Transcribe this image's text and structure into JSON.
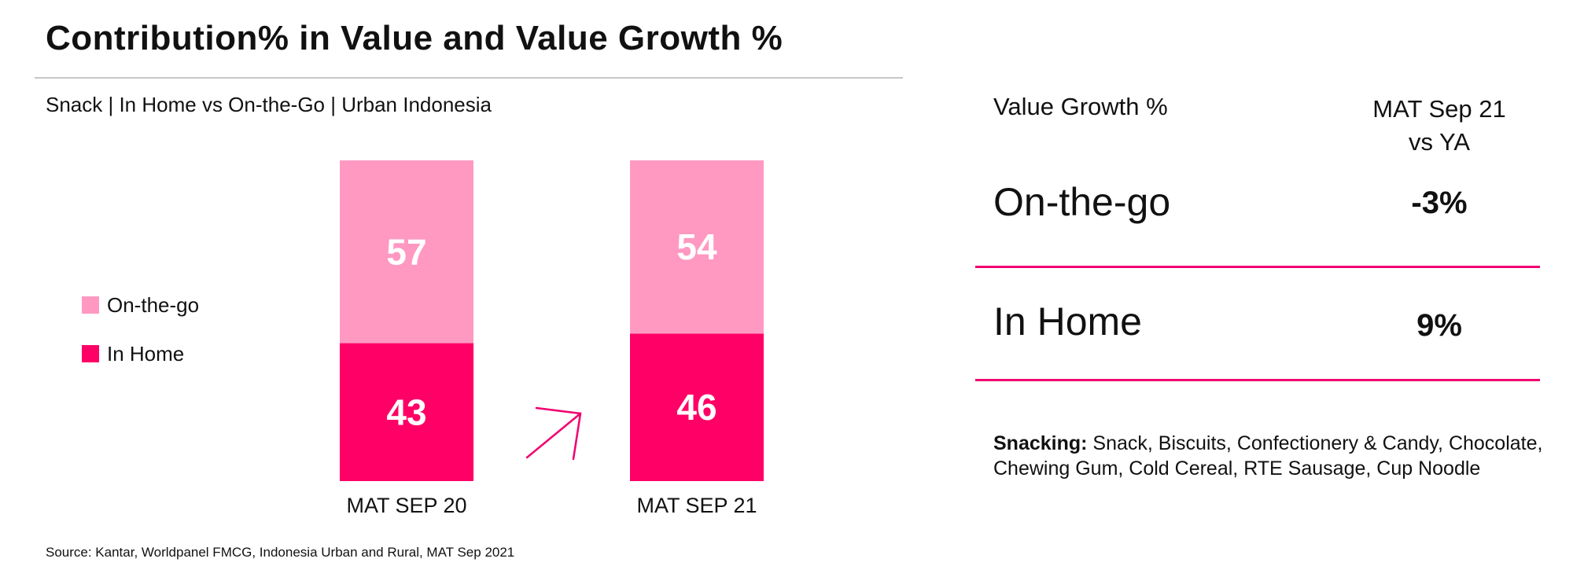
{
  "header": {
    "title": "Contribution% in Value and Value Growth %",
    "subtitle": "Snack | In Home vs On-the-Go | Urban Indonesia"
  },
  "colors": {
    "on_the_go": "#ff99c2",
    "in_home": "#ff0066",
    "rule": "#f0006f",
    "bar_label": "#ffffff"
  },
  "legend": [
    {
      "label": "On-the-go",
      "color": "#ff99c2"
    },
    {
      "label": "In Home",
      "color": "#ff0066"
    }
  ],
  "chart_data": {
    "type": "bar",
    "stacked": true,
    "categories": [
      "MAT SEP 20",
      "MAT SEP 21"
    ],
    "series": [
      {
        "name": "In Home",
        "values": [
          43,
          46
        ]
      },
      {
        "name": "On-the-go",
        "values": [
          57,
          54
        ]
      }
    ],
    "ylim": [
      0,
      100
    ],
    "legend_position": "left",
    "grid": false,
    "annotation_icon": "upward-arrow-icon"
  },
  "growth_table": {
    "header_metric": "Value Growth %",
    "header_period_line1": "MAT Sep 21",
    "header_period_line2": "vs YA",
    "rows": [
      {
        "label": "On-the-go",
        "value": "-3%"
      },
      {
        "label": "In Home",
        "value": "9%"
      }
    ]
  },
  "footnote": {
    "label": "Snacking:",
    "text": " Snack, Biscuits, Confectionery & Candy, Chocolate, Chewing Gum, Cold Cereal, RTE Sausage, Cup Noodle"
  },
  "source": "Source: Kantar, Worldpanel FMCG, Indonesia Urban and Rural, MAT Sep 2021"
}
